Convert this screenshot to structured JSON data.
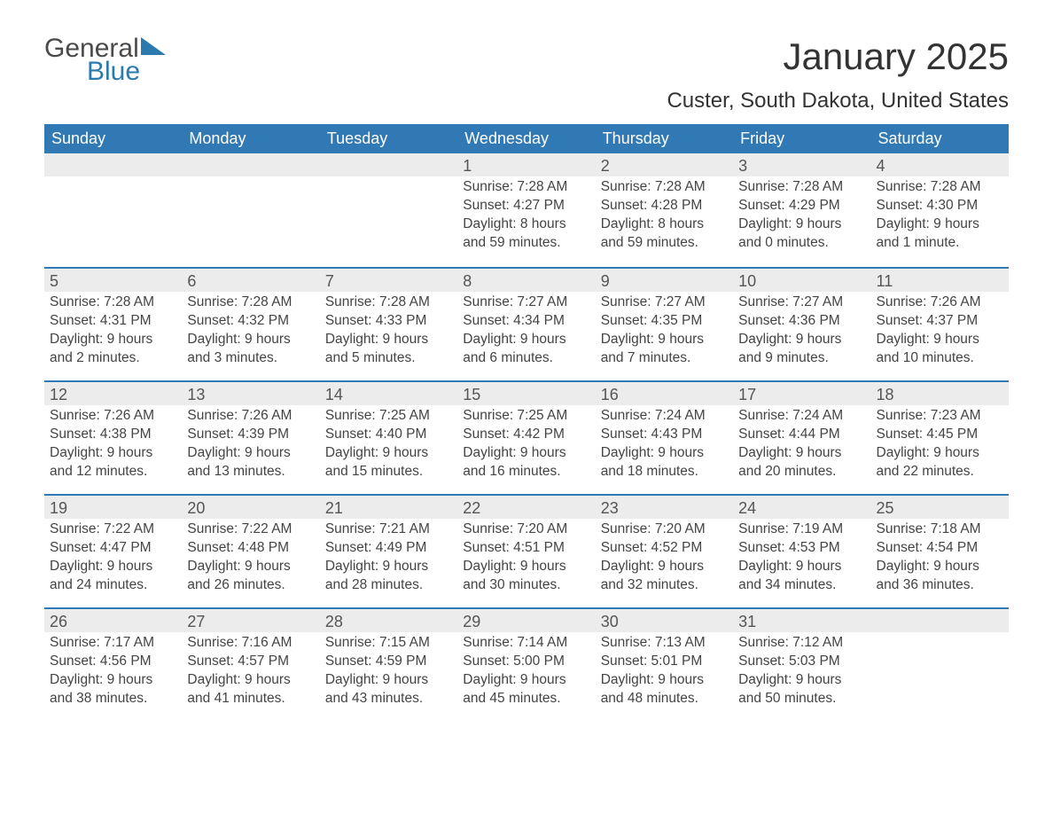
{
  "logo": {
    "general": "General",
    "blue": "Blue"
  },
  "title": "January 2025",
  "location": "Custer, South Dakota, United States",
  "colors": {
    "header_bg": "#3179b5",
    "header_text": "#ffffff",
    "daynum_bg": "#ececec",
    "text": "#444444",
    "rule": "#3179b5",
    "logo_gray": "#4a4a4a",
    "logo_blue": "#2a7ab0",
    "page_bg": "#ffffff"
  },
  "day_names": [
    "Sunday",
    "Monday",
    "Tuesday",
    "Wednesday",
    "Thursday",
    "Friday",
    "Saturday"
  ],
  "weeks": [
    [
      {
        "n": "",
        "sunrise": "",
        "sunset": "",
        "daylight": ""
      },
      {
        "n": "",
        "sunrise": "",
        "sunset": "",
        "daylight": ""
      },
      {
        "n": "",
        "sunrise": "",
        "sunset": "",
        "daylight": ""
      },
      {
        "n": "1",
        "sunrise": "Sunrise: 7:28 AM",
        "sunset": "Sunset: 4:27 PM",
        "daylight": "Daylight: 8 hours and 59 minutes."
      },
      {
        "n": "2",
        "sunrise": "Sunrise: 7:28 AM",
        "sunset": "Sunset: 4:28 PM",
        "daylight": "Daylight: 8 hours and 59 minutes."
      },
      {
        "n": "3",
        "sunrise": "Sunrise: 7:28 AM",
        "sunset": "Sunset: 4:29 PM",
        "daylight": "Daylight: 9 hours and 0 minutes."
      },
      {
        "n": "4",
        "sunrise": "Sunrise: 7:28 AM",
        "sunset": "Sunset: 4:30 PM",
        "daylight": "Daylight: 9 hours and 1 minute."
      }
    ],
    [
      {
        "n": "5",
        "sunrise": "Sunrise: 7:28 AM",
        "sunset": "Sunset: 4:31 PM",
        "daylight": "Daylight: 9 hours and 2 minutes."
      },
      {
        "n": "6",
        "sunrise": "Sunrise: 7:28 AM",
        "sunset": "Sunset: 4:32 PM",
        "daylight": "Daylight: 9 hours and 3 minutes."
      },
      {
        "n": "7",
        "sunrise": "Sunrise: 7:28 AM",
        "sunset": "Sunset: 4:33 PM",
        "daylight": "Daylight: 9 hours and 5 minutes."
      },
      {
        "n": "8",
        "sunrise": "Sunrise: 7:27 AM",
        "sunset": "Sunset: 4:34 PM",
        "daylight": "Daylight: 9 hours and 6 minutes."
      },
      {
        "n": "9",
        "sunrise": "Sunrise: 7:27 AM",
        "sunset": "Sunset: 4:35 PM",
        "daylight": "Daylight: 9 hours and 7 minutes."
      },
      {
        "n": "10",
        "sunrise": "Sunrise: 7:27 AM",
        "sunset": "Sunset: 4:36 PM",
        "daylight": "Daylight: 9 hours and 9 minutes."
      },
      {
        "n": "11",
        "sunrise": "Sunrise: 7:26 AM",
        "sunset": "Sunset: 4:37 PM",
        "daylight": "Daylight: 9 hours and 10 minutes."
      }
    ],
    [
      {
        "n": "12",
        "sunrise": "Sunrise: 7:26 AM",
        "sunset": "Sunset: 4:38 PM",
        "daylight": "Daylight: 9 hours and 12 minutes."
      },
      {
        "n": "13",
        "sunrise": "Sunrise: 7:26 AM",
        "sunset": "Sunset: 4:39 PM",
        "daylight": "Daylight: 9 hours and 13 minutes."
      },
      {
        "n": "14",
        "sunrise": "Sunrise: 7:25 AM",
        "sunset": "Sunset: 4:40 PM",
        "daylight": "Daylight: 9 hours and 15 minutes."
      },
      {
        "n": "15",
        "sunrise": "Sunrise: 7:25 AM",
        "sunset": "Sunset: 4:42 PM",
        "daylight": "Daylight: 9 hours and 16 minutes."
      },
      {
        "n": "16",
        "sunrise": "Sunrise: 7:24 AM",
        "sunset": "Sunset: 4:43 PM",
        "daylight": "Daylight: 9 hours and 18 minutes."
      },
      {
        "n": "17",
        "sunrise": "Sunrise: 7:24 AM",
        "sunset": "Sunset: 4:44 PM",
        "daylight": "Daylight: 9 hours and 20 minutes."
      },
      {
        "n": "18",
        "sunrise": "Sunrise: 7:23 AM",
        "sunset": "Sunset: 4:45 PM",
        "daylight": "Daylight: 9 hours and 22 minutes."
      }
    ],
    [
      {
        "n": "19",
        "sunrise": "Sunrise: 7:22 AM",
        "sunset": "Sunset: 4:47 PM",
        "daylight": "Daylight: 9 hours and 24 minutes."
      },
      {
        "n": "20",
        "sunrise": "Sunrise: 7:22 AM",
        "sunset": "Sunset: 4:48 PM",
        "daylight": "Daylight: 9 hours and 26 minutes."
      },
      {
        "n": "21",
        "sunrise": "Sunrise: 7:21 AM",
        "sunset": "Sunset: 4:49 PM",
        "daylight": "Daylight: 9 hours and 28 minutes."
      },
      {
        "n": "22",
        "sunrise": "Sunrise: 7:20 AM",
        "sunset": "Sunset: 4:51 PM",
        "daylight": "Daylight: 9 hours and 30 minutes."
      },
      {
        "n": "23",
        "sunrise": "Sunrise: 7:20 AM",
        "sunset": "Sunset: 4:52 PM",
        "daylight": "Daylight: 9 hours and 32 minutes."
      },
      {
        "n": "24",
        "sunrise": "Sunrise: 7:19 AM",
        "sunset": "Sunset: 4:53 PM",
        "daylight": "Daylight: 9 hours and 34 minutes."
      },
      {
        "n": "25",
        "sunrise": "Sunrise: 7:18 AM",
        "sunset": "Sunset: 4:54 PM",
        "daylight": "Daylight: 9 hours and 36 minutes."
      }
    ],
    [
      {
        "n": "26",
        "sunrise": "Sunrise: 7:17 AM",
        "sunset": "Sunset: 4:56 PM",
        "daylight": "Daylight: 9 hours and 38 minutes."
      },
      {
        "n": "27",
        "sunrise": "Sunrise: 7:16 AM",
        "sunset": "Sunset: 4:57 PM",
        "daylight": "Daylight: 9 hours and 41 minutes."
      },
      {
        "n": "28",
        "sunrise": "Sunrise: 7:15 AM",
        "sunset": "Sunset: 4:59 PM",
        "daylight": "Daylight: 9 hours and 43 minutes."
      },
      {
        "n": "29",
        "sunrise": "Sunrise: 7:14 AM",
        "sunset": "Sunset: 5:00 PM",
        "daylight": "Daylight: 9 hours and 45 minutes."
      },
      {
        "n": "30",
        "sunrise": "Sunrise: 7:13 AM",
        "sunset": "Sunset: 5:01 PM",
        "daylight": "Daylight: 9 hours and 48 minutes."
      },
      {
        "n": "31",
        "sunrise": "Sunrise: 7:12 AM",
        "sunset": "Sunset: 5:03 PM",
        "daylight": "Daylight: 9 hours and 50 minutes."
      },
      {
        "n": "",
        "sunrise": "",
        "sunset": "",
        "daylight": ""
      }
    ]
  ]
}
